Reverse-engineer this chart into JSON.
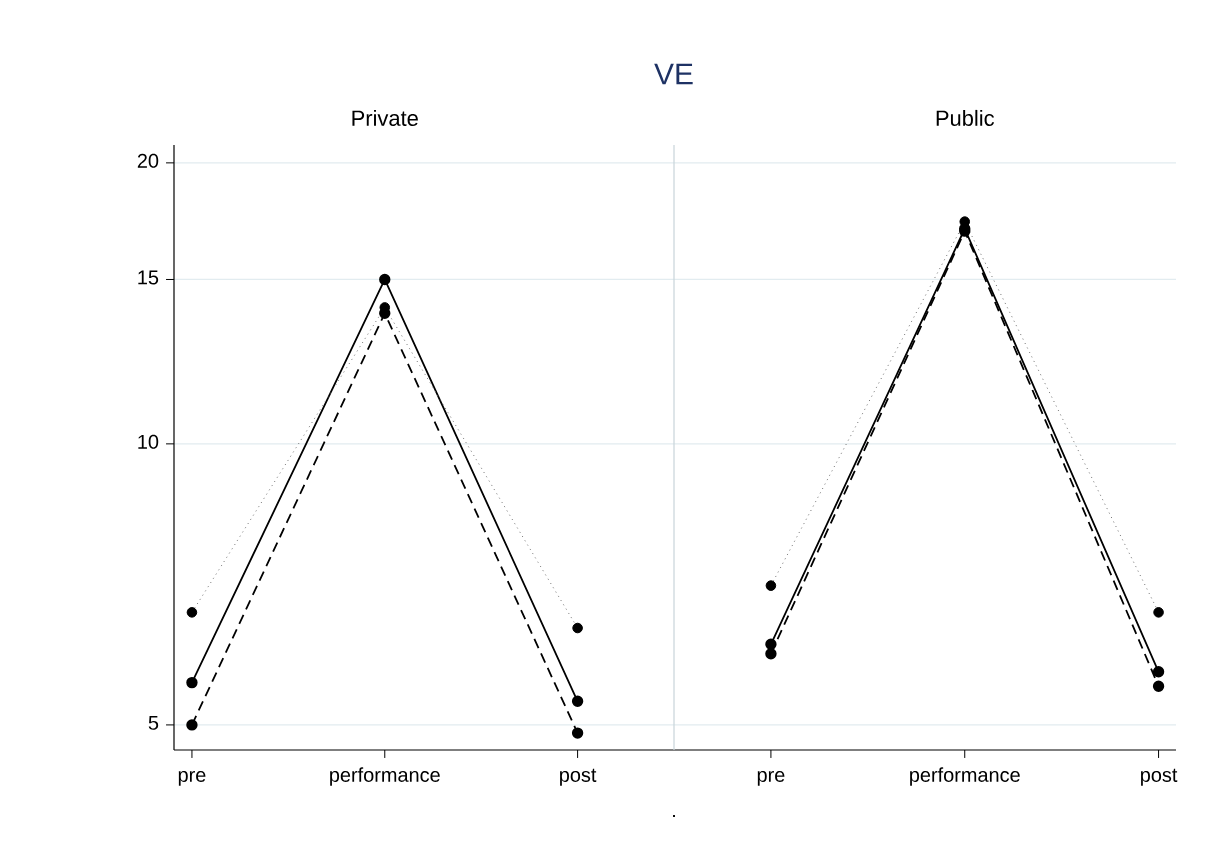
{
  "chart_data": [
    {
      "type": "line",
      "title": "VE",
      "subtitle": "Private",
      "categories": [
        "pre",
        "performance",
        "post"
      ],
      "series": [
        {
          "color": "#000000",
          "line_style": "solid",
          "values": [
            5.55,
            15,
            5.3
          ]
        },
        {
          "color": "#000000",
          "line_style": "dashed",
          "values": [
            5.0,
            13.8,
            4.9
          ]
        },
        {
          "color": "#000000",
          "line_style": "dotted",
          "values": [
            6.6,
            14.0,
            6.35
          ]
        }
      ],
      "ylim": [
        4.7,
        20.9
      ],
      "yticks": [
        5,
        10,
        15,
        20
      ],
      "log": "y",
      "grid": "y",
      "marker": "circle"
    },
    {
      "type": "line",
      "subtitle": "Public",
      "xlabel": ".",
      "categories": [
        "pre",
        "performance",
        "post"
      ],
      "series": [
        {
          "color": "#000000",
          "line_style": "solid",
          "values": [
            6.1,
            17.0,
            5.7
          ]
        },
        {
          "color": "#000000",
          "line_style": "dashed",
          "values": [
            5.96,
            16.9,
            5.5
          ]
        },
        {
          "color": "#000000",
          "line_style": "dotted",
          "values": [
            7.05,
            17.3,
            6.6
          ]
        }
      ],
      "ylim": [
        4.7,
        20.9
      ],
      "yticks": [
        5,
        10,
        15,
        20
      ],
      "log": "y",
      "grid": "y",
      "marker": "circle",
      "tick_labels": "x"
    }
  ]
}
